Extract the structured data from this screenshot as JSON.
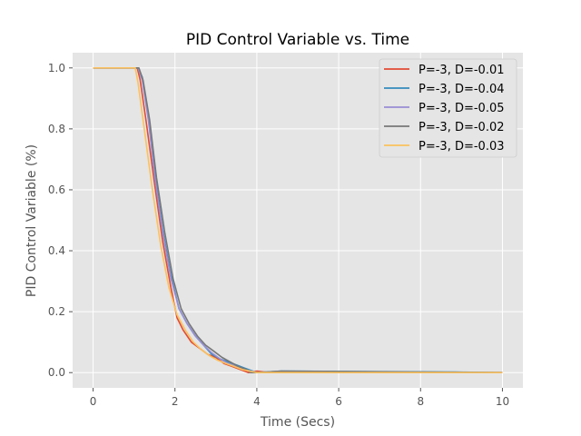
{
  "chart_data": {
    "type": "line",
    "title": "PID Control Variable vs. Time",
    "xlabel": "Time (Secs)",
    "ylabel": "PID Control Variable (%)",
    "xlim": [
      -0.5,
      10.5
    ],
    "ylim": [
      -0.05,
      1.05
    ],
    "xticks": [
      0,
      2,
      4,
      6,
      8,
      10
    ],
    "yticks": [
      0.0,
      0.2,
      0.4,
      0.6,
      0.8,
      1.0
    ],
    "xtick_labels": [
      "0",
      "2",
      "4",
      "6",
      "8",
      "10"
    ],
    "ytick_labels": [
      "0.0",
      "0.2",
      "0.4",
      "0.6",
      "0.8",
      "1.0"
    ],
    "grid": true,
    "legend_position": "top-right",
    "series": [
      {
        "name": "P=-3, D=-0.01",
        "color": "#e24a33",
        "x": [
          0,
          1.08,
          1.15,
          1.3,
          1.5,
          1.7,
          1.9,
          2.05,
          2.2,
          2.4,
          2.6,
          2.8,
          3.0,
          3.2,
          3.4,
          3.6,
          3.8,
          4.0,
          4.3,
          4.6,
          10
        ],
        "y": [
          1.0,
          1.0,
          0.96,
          0.82,
          0.62,
          0.43,
          0.28,
          0.18,
          0.14,
          0.1,
          0.08,
          0.06,
          0.05,
          0.03,
          0.02,
          0.01,
          0.0,
          0.005,
          0.0,
          0.0,
          0.0
        ]
      },
      {
        "name": "P=-3, D=-0.04",
        "color": "#348abd",
        "x": [
          0,
          1.1,
          1.2,
          1.35,
          1.5,
          1.7,
          1.9,
          2.1,
          2.3,
          2.5,
          2.7,
          2.9,
          3.1,
          3.3,
          3.5,
          3.7,
          3.8,
          4.0,
          4.6,
          8.85,
          10
        ],
        "y": [
          1.0,
          1.0,
          0.97,
          0.84,
          0.66,
          0.47,
          0.32,
          0.21,
          0.16,
          0.12,
          0.09,
          0.06,
          0.045,
          0.035,
          0.025,
          0.015,
          0.01,
          0.0,
          0.005,
          0.002,
          0.0
        ]
      },
      {
        "name": "P=-3, D=-0.05",
        "color": "#988ed5",
        "x": [
          0,
          1.1,
          1.2,
          1.35,
          1.5,
          1.7,
          1.9,
          2.1,
          2.3,
          2.5,
          2.7,
          2.9,
          3.1,
          3.3,
          3.5,
          3.7,
          4.0,
          10
        ],
        "y": [
          1.0,
          1.0,
          0.96,
          0.83,
          0.65,
          0.46,
          0.31,
          0.21,
          0.16,
          0.12,
          0.09,
          0.065,
          0.045,
          0.03,
          0.02,
          0.01,
          0.0,
          0.0
        ]
      },
      {
        "name": "P=-3, D=-0.02",
        "color": "#777777",
        "x": [
          0,
          1.12,
          1.22,
          1.38,
          1.55,
          1.75,
          1.95,
          2.15,
          2.35,
          2.55,
          2.75,
          2.95,
          3.15,
          3.35,
          3.55,
          3.75,
          3.85,
          4.0,
          4.6,
          10
        ],
        "y": [
          1.0,
          1.0,
          0.96,
          0.83,
          0.64,
          0.46,
          0.31,
          0.21,
          0.16,
          0.12,
          0.09,
          0.07,
          0.05,
          0.035,
          0.02,
          0.01,
          0.0,
          0.0,
          0.005,
          0.0
        ]
      },
      {
        "name": "P=-3, D=-0.03",
        "color": "#fbc15e",
        "x": [
          0,
          1.03,
          1.1,
          1.25,
          1.45,
          1.65,
          1.85,
          2.05,
          2.25,
          2.45,
          2.65,
          2.85,
          3.05,
          3.25,
          3.45,
          3.65,
          4.0,
          10
        ],
        "y": [
          1.0,
          1.0,
          0.95,
          0.8,
          0.6,
          0.42,
          0.28,
          0.19,
          0.14,
          0.1,
          0.075,
          0.055,
          0.04,
          0.03,
          0.02,
          0.01,
          0.0,
          0.0
        ]
      }
    ]
  }
}
